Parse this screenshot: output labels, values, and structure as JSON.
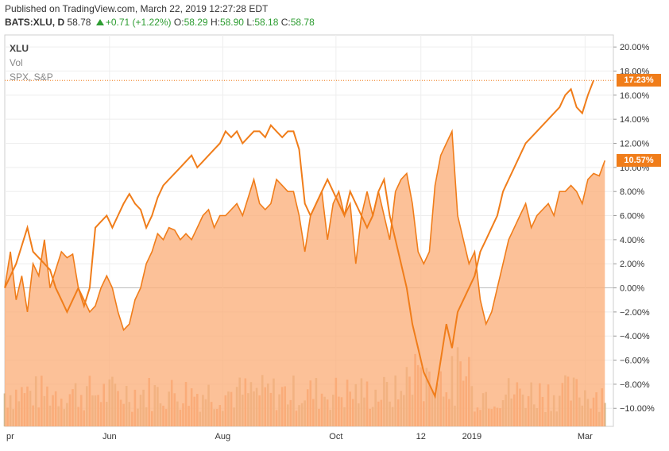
{
  "header": {
    "published": "Published on TradingView.com, March 22, 2019 12:27:28 EDT",
    "symbol": "BATS:XLU, D",
    "last": "58.78",
    "change": "+0.71 (+1.22%)",
    "o_label": "O:",
    "o_value": "58.29",
    "h_label": "H:",
    "h_value": "58.90",
    "l_label": "L:",
    "l_value": "58.18",
    "c_label": "C:",
    "c_value": "58.78"
  },
  "legend": {
    "xlu": "XLU",
    "vol": "Vol",
    "spx": "SPX, S&P"
  },
  "colors": {
    "xlu_line": "#f07d1a",
    "xlu_fill": "#fbb07b",
    "spx_line": "#f07d1a",
    "vol_up": "#c9b083",
    "vol_down": "#f2915a",
    "up_text": "#2e9d32"
  },
  "chart_data": {
    "type": "line",
    "title": "",
    "xlabel": "",
    "ylabel": "",
    "ylim": [
      -11.5,
      21
    ],
    "y_ticks": [
      "20.00%",
      "18.00%",
      "16.00%",
      "14.00%",
      "12.00%",
      "10.00%",
      "8.00%",
      "6.00%",
      "4.00%",
      "2.00%",
      "0.00%",
      "−2.00%",
      "−4.00%",
      "−6.00%",
      "−8.00%",
      "−10.00%"
    ],
    "y_tick_values": [
      20,
      18,
      16,
      14,
      12,
      10,
      8,
      6,
      4,
      2,
      0,
      -2,
      -4,
      -6,
      -8,
      -10
    ],
    "x_ticks": [
      "pr",
      "Jun",
      "Aug",
      "Oct",
      "12",
      "2019",
      "Mar"
    ],
    "x_tick_positions": [
      0,
      37,
      77,
      117,
      147,
      165,
      205
    ],
    "grid": true,
    "last_labels": {
      "xlu": "10.57%",
      "spx": "17.23%"
    },
    "series": [
      {
        "name": "XLU",
        "style": "area",
        "values": [
          [
            0,
            0
          ],
          [
            2,
            3
          ],
          [
            4,
            -1
          ],
          [
            6,
            1
          ],
          [
            8,
            -2
          ],
          [
            10,
            2
          ],
          [
            12,
            1
          ],
          [
            14,
            4
          ],
          [
            16,
            0
          ],
          [
            18,
            1.5
          ],
          [
            20,
            3
          ],
          [
            22,
            2.5
          ],
          [
            24,
            2.8
          ],
          [
            26,
            0
          ],
          [
            28,
            -1
          ],
          [
            30,
            -2
          ],
          [
            32,
            -1.5
          ],
          [
            34,
            0
          ],
          [
            36,
            1
          ],
          [
            38,
            0
          ],
          [
            40,
            -2
          ],
          [
            42,
            -3.5
          ],
          [
            44,
            -3
          ],
          [
            46,
            -1
          ],
          [
            48,
            0
          ],
          [
            50,
            2
          ],
          [
            52,
            3
          ],
          [
            54,
            4.5
          ],
          [
            56,
            4
          ],
          [
            58,
            5
          ],
          [
            60,
            4.8
          ],
          [
            62,
            4
          ],
          [
            64,
            4.5
          ],
          [
            66,
            4
          ],
          [
            68,
            5
          ],
          [
            70,
            6
          ],
          [
            72,
            6.5
          ],
          [
            74,
            5
          ],
          [
            76,
            6
          ],
          [
            78,
            6
          ],
          [
            80,
            6.5
          ],
          [
            82,
            7
          ],
          [
            84,
            6
          ],
          [
            86,
            7.5
          ],
          [
            88,
            9
          ],
          [
            90,
            7
          ],
          [
            92,
            6.5
          ],
          [
            94,
            7
          ],
          [
            96,
            9
          ],
          [
            98,
            8.5
          ],
          [
            100,
            8
          ],
          [
            102,
            8
          ],
          [
            104,
            6
          ],
          [
            106,
            3
          ],
          [
            108,
            6
          ],
          [
            110,
            7
          ],
          [
            112,
            8
          ],
          [
            114,
            4
          ],
          [
            116,
            7
          ],
          [
            118,
            8
          ],
          [
            120,
            6
          ],
          [
            122,
            7
          ],
          [
            124,
            2
          ],
          [
            126,
            6
          ],
          [
            128,
            8
          ],
          [
            130,
            6
          ],
          [
            132,
            8
          ],
          [
            134,
            6
          ],
          [
            136,
            4
          ],
          [
            138,
            8
          ],
          [
            140,
            9
          ],
          [
            142,
            9.5
          ],
          [
            144,
            7
          ],
          [
            146,
            3
          ],
          [
            148,
            2
          ],
          [
            150,
            3
          ],
          [
            152,
            8.5
          ],
          [
            154,
            11
          ],
          [
            156,
            12
          ],
          [
            158,
            13
          ],
          [
            160,
            6
          ],
          [
            162,
            4
          ],
          [
            164,
            2
          ],
          [
            166,
            3
          ],
          [
            168,
            -1
          ],
          [
            170,
            -3
          ],
          [
            172,
            -2
          ],
          [
            174,
            0
          ],
          [
            176,
            2
          ],
          [
            178,
            4
          ],
          [
            180,
            5
          ],
          [
            182,
            6
          ],
          [
            184,
            7
          ],
          [
            186,
            5
          ],
          [
            188,
            6
          ],
          [
            190,
            6.5
          ],
          [
            192,
            7
          ],
          [
            194,
            6
          ],
          [
            196,
            8
          ],
          [
            198,
            8
          ],
          [
            200,
            8.5
          ],
          [
            202,
            8
          ],
          [
            204,
            7
          ],
          [
            206,
            9
          ],
          [
            208,
            9.5
          ],
          [
            210,
            9.3
          ],
          [
            212,
            10.57
          ]
        ]
      },
      {
        "name": "SPX, S&P",
        "style": "line",
        "values": [
          [
            0,
            0
          ],
          [
            2,
            1
          ],
          [
            4,
            2
          ],
          [
            6,
            3.5
          ],
          [
            8,
            5
          ],
          [
            10,
            3
          ],
          [
            12,
            2.5
          ],
          [
            14,
            2
          ],
          [
            16,
            1.5
          ],
          [
            18,
            0
          ],
          [
            20,
            -1
          ],
          [
            22,
            -2
          ],
          [
            24,
            -1
          ],
          [
            26,
            0
          ],
          [
            28,
            -1.5
          ],
          [
            30,
            0
          ],
          [
            32,
            5
          ],
          [
            34,
            5.5
          ],
          [
            36,
            6
          ],
          [
            38,
            5
          ],
          [
            40,
            6
          ],
          [
            42,
            7
          ],
          [
            44,
            7.8
          ],
          [
            46,
            7
          ],
          [
            48,
            6.5
          ],
          [
            50,
            5
          ],
          [
            52,
            6
          ],
          [
            54,
            7.5
          ],
          [
            56,
            8.5
          ],
          [
            58,
            9
          ],
          [
            60,
            9.5
          ],
          [
            62,
            10
          ],
          [
            64,
            10.5
          ],
          [
            66,
            11
          ],
          [
            68,
            10
          ],
          [
            70,
            10.5
          ],
          [
            72,
            11
          ],
          [
            74,
            11.5
          ],
          [
            76,
            12
          ],
          [
            78,
            13
          ],
          [
            80,
            12.5
          ],
          [
            82,
            13
          ],
          [
            84,
            12
          ],
          [
            86,
            12.5
          ],
          [
            88,
            13
          ],
          [
            90,
            13
          ],
          [
            92,
            12.5
          ],
          [
            94,
            13.5
          ],
          [
            96,
            13
          ],
          [
            98,
            12.5
          ],
          [
            100,
            13
          ],
          [
            102,
            13
          ],
          [
            104,
            11.5
          ],
          [
            106,
            7
          ],
          [
            108,
            6
          ],
          [
            110,
            7
          ],
          [
            112,
            8
          ],
          [
            114,
            9
          ],
          [
            116,
            8
          ],
          [
            118,
            7
          ],
          [
            120,
            6
          ],
          [
            122,
            8
          ],
          [
            124,
            7
          ],
          [
            126,
            6
          ],
          [
            128,
            5
          ],
          [
            130,
            6
          ],
          [
            132,
            8
          ],
          [
            134,
            9
          ],
          [
            136,
            6
          ],
          [
            138,
            4
          ],
          [
            140,
            2
          ],
          [
            142,
            0
          ],
          [
            144,
            -3
          ],
          [
            146,
            -5
          ],
          [
            148,
            -7
          ],
          [
            150,
            -8
          ],
          [
            152,
            -9
          ],
          [
            154,
            -6
          ],
          [
            156,
            -3
          ],
          [
            158,
            -5
          ],
          [
            160,
            -2
          ],
          [
            162,
            -1
          ],
          [
            164,
            0
          ],
          [
            166,
            1
          ],
          [
            168,
            3
          ],
          [
            170,
            4
          ],
          [
            172,
            5
          ],
          [
            174,
            6
          ],
          [
            176,
            8
          ],
          [
            178,
            9
          ],
          [
            180,
            10
          ],
          [
            182,
            11
          ],
          [
            184,
            12
          ],
          [
            186,
            12.5
          ],
          [
            188,
            13
          ],
          [
            190,
            13.5
          ],
          [
            192,
            14
          ],
          [
            194,
            14.5
          ],
          [
            196,
            15
          ],
          [
            198,
            16
          ],
          [
            200,
            16.5
          ],
          [
            202,
            15
          ],
          [
            204,
            14.5
          ],
          [
            206,
            16
          ],
          [
            208,
            17.23
          ]
        ]
      }
    ]
  }
}
